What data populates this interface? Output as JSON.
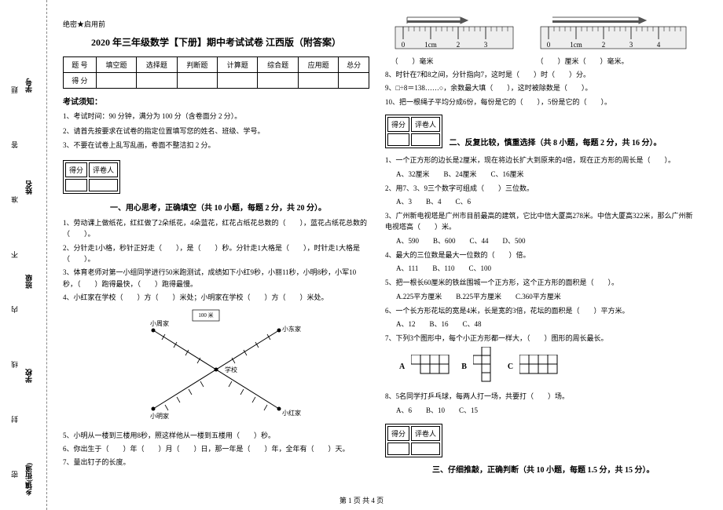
{
  "binding": {
    "fields": [
      "乡镇(街道)",
      "学校",
      "班级",
      "姓名",
      "学号"
    ],
    "chars": [
      "密",
      "封",
      "线",
      "内",
      "不",
      "准",
      "答",
      "题"
    ]
  },
  "secret": "绝密★启用前",
  "title": "2020 年三年级数学【下册】期中考试试卷 江西版（附答案）",
  "score_table": {
    "headers": [
      "题 号",
      "填空题",
      "选择题",
      "判断题",
      "计算题",
      "综合题",
      "应用题",
      "总分"
    ],
    "row_label": "得 分"
  },
  "notice_title": "考试须知：",
  "notices": [
    "1、考试时间：90 分钟，满分为 100 分（含卷面分 2 分）。",
    "2、请首先按要求在试卷的指定位置填写您的姓名、班级、学号。",
    "3、不要在试卷上乱写乱画，卷面不整洁扣 2 分。"
  ],
  "gradebox": {
    "left": "得分",
    "right": "评卷人"
  },
  "sections": {
    "s1": "一、用心思考，正确填空（共 10 小题，每题 2 分，共 20 分）。",
    "s2": "二、反复比较，慎重选择（共 8 小题，每题 2 分，共 16 分）。",
    "s3": "三、仔细推敲，正确判断（共 10 小题，每题 1.5 分，共 15 分）。"
  },
  "q_left": {
    "q1": "1、劳动课上做纸花，红红做了2朵纸花，4朵蓝花，红花占纸花总数的（　　），蓝花占纸花总数的（　　）。",
    "q2": "2、分针走1小格，秒针正好走（　　），是（　　）秒。分针走1大格是（　　），时针走1大格是（　　）。",
    "q3": "3、体育老师对第一小组同学进行50米跑测试，成绩如下小红9秒，小丽11秒，小明8秒，小军10秒，（　　）跑得最快，（　　）跑得最慢。",
    "q4": "4、小红家在学校（　　）方（　　）米处；小明家在学校（　　）方（　　）米处。",
    "q5": "5、小明从一楼到三楼用8秒，照这样他从一楼到五楼用（　　）秒。",
    "q6": "6、你出生于（　　）年（　　）月（　　）日，那一年是（　　）年，全年有（　　）天。",
    "q7": "7、量出钉子的长度。"
  },
  "diagram": {
    "box_label": "100 米",
    "labels": [
      "小周家",
      "小东家",
      "小明家",
      "小红家"
    ],
    "center": "学校"
  },
  "rulers": {
    "left_label": "（　　）毫米",
    "right_label": "（　　）厘米（　　）毫米。",
    "ticks": [
      "0",
      "1cm",
      "2",
      "3"
    ],
    "ticks_r": [
      "0",
      "1cm",
      "2",
      "3",
      "4"
    ]
  },
  "q_right_fill": {
    "q8": "8、时针在7和8之间，分针指向7，这时是（　　）时（　　）分。",
    "q9": "9、□÷8＝138……○，余数最大填（　　），这时被除数是（　　）。",
    "q10": "10、把一根绳子平均分成6份，每份是它的（　　），5份是它的（　　）。"
  },
  "q_choice": {
    "q1": "1、一个正方形的边长是2厘米，现在将边长扩大到原来的4倍，现在正方形的周长是（　　）。",
    "q1_opts": [
      "A、32厘米",
      "B、24厘米",
      "C、16厘米"
    ],
    "q2": "2、用7、3、9三个数字可组成（　　）三位数。",
    "q2_opts": [
      "A、3",
      "B、4",
      "C、6"
    ],
    "q3": "3、广州新电视塔是广州市目前最高的建筑，它比中信大厦高278米。中信大厦高322米，那么广州新电视塔高（　　）米。",
    "q3_opts": [
      "A、590",
      "B、600",
      "C、44",
      "D、500"
    ],
    "q4": "4、最大的三位数是最大一位数的（　　）倍。",
    "q4_opts": [
      "A、111",
      "B、110",
      "C、100"
    ],
    "q5": "5、把一根长60厘米的铁丝围城一个正方形，这个正方形的面积是（　　）。",
    "q5_opts": [
      "A.225平方厘米",
      "B.225平方厘米",
      "C.360平方厘米"
    ],
    "q6": "6、一个长方形花坛的宽是4米，长是宽的3倍，花坛的面积是（　　）平方米。",
    "q6_opts": [
      "A、12",
      "B、16",
      "C、48"
    ],
    "q7": "7、下列3个图形中，每个小正方形都一样大，（　　）图形的周长最长。",
    "q7_labels": [
      "A",
      "B",
      "C"
    ],
    "q8": "8、5名同学打乒乓球，每两人打一场，共要打（　　）场。",
    "q8_opts": [
      "A、6",
      "B、10",
      "C、15"
    ]
  },
  "shapes": {
    "A": [
      [
        0,
        0,
        1
      ],
      [
        1,
        0,
        1
      ],
      [
        2,
        0,
        1
      ],
      [
        3,
        0,
        1
      ],
      [
        1,
        1,
        1
      ],
      [
        2,
        1,
        1
      ],
      [
        3,
        1,
        1
      ]
    ],
    "B": [
      [
        1,
        0,
        1
      ],
      [
        0,
        1,
        1
      ],
      [
        1,
        1,
        1
      ],
      [
        1,
        2,
        1
      ],
      [
        1,
        3,
        1
      ]
    ],
    "C": [
      [
        0,
        0,
        1
      ],
      [
        1,
        0,
        1
      ],
      [
        2,
        0,
        1
      ],
      [
        3,
        0,
        1
      ],
      [
        0,
        1,
        1
      ],
      [
        1,
        1,
        1
      ],
      [
        2,
        1,
        1
      ],
      [
        3,
        1,
        1
      ]
    ]
  },
  "footer": "第 1 页 共 4 页"
}
